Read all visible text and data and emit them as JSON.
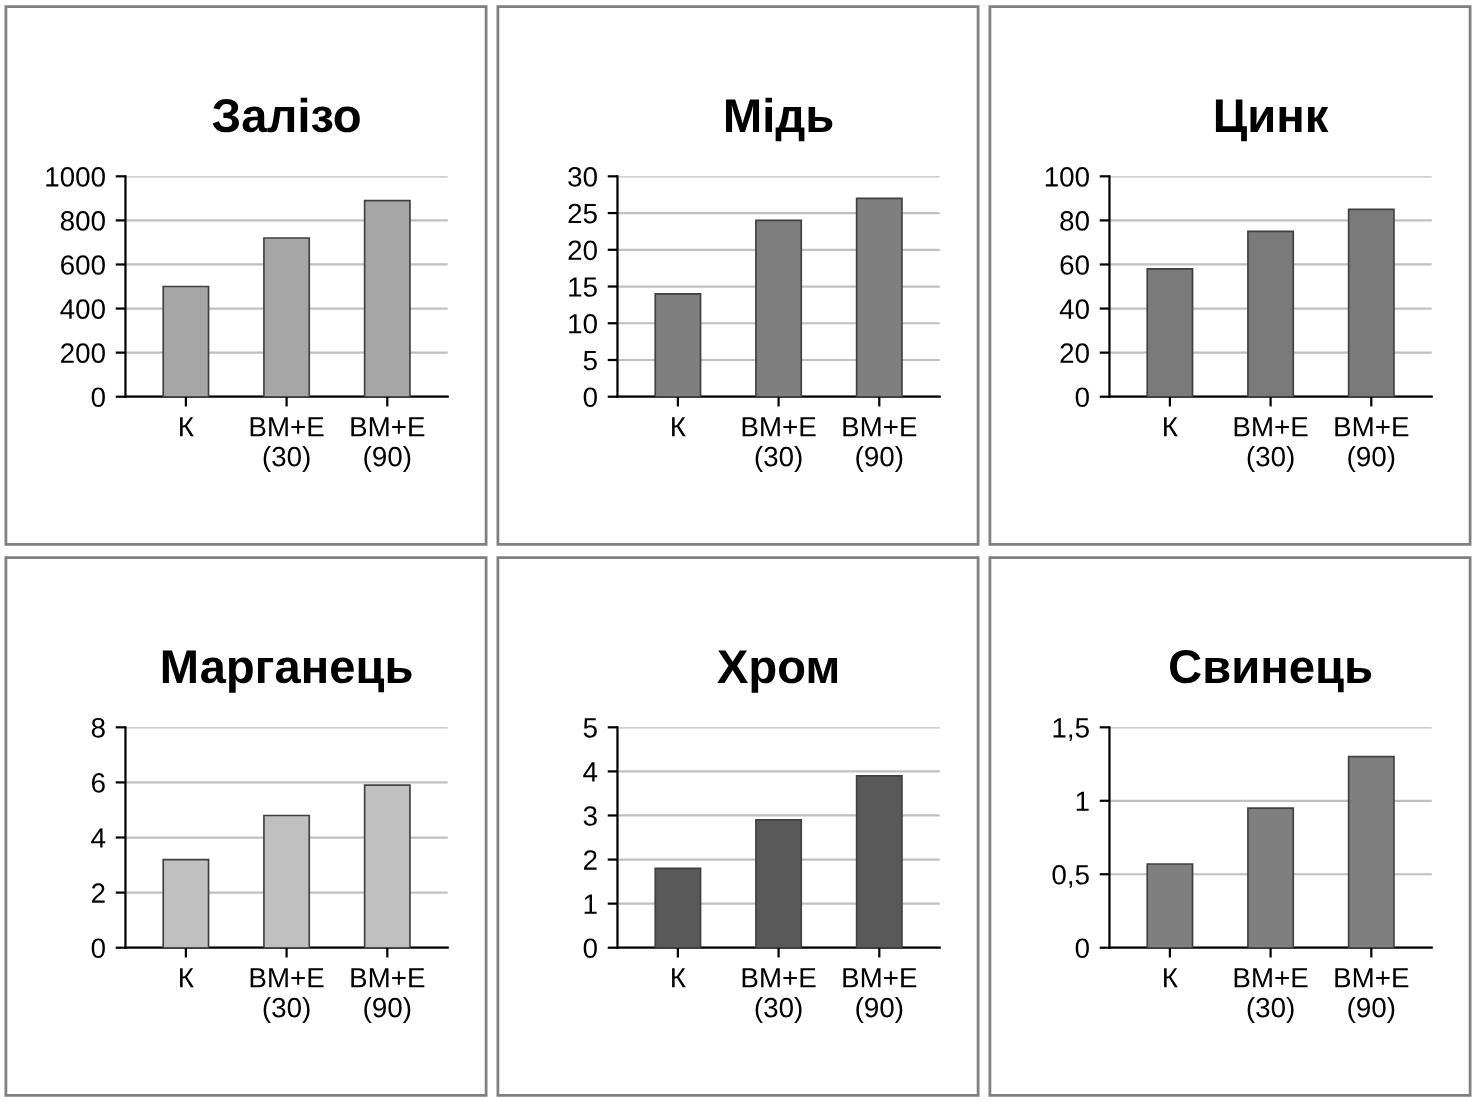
{
  "chart_data": [
    {
      "type": "bar",
      "title": "Залізо",
      "categories": [
        "К",
        "ВМ+Е\n(30)",
        "ВМ+Е\n(90)"
      ],
      "values": [
        500,
        720,
        890
      ],
      "color": "#a6a6a6",
      "ylim": [
        0,
        1000
      ],
      "yticks": [
        0,
        200,
        400,
        600,
        800,
        1000
      ],
      "grid": "y"
    },
    {
      "type": "bar",
      "title": "Мідь",
      "categories": [
        "К",
        "ВМ+Е\n(30)",
        "ВМ+Е\n(90)"
      ],
      "values": [
        14,
        24,
        27
      ],
      "color": "#7f7f7f",
      "ylim": [
        0,
        30
      ],
      "yticks": [
        0,
        5,
        10,
        15,
        20,
        25,
        30
      ],
      "grid": "y"
    },
    {
      "type": "bar",
      "title": "Цинк",
      "categories": [
        "К",
        "ВМ+Е\n(30)",
        "ВМ+Е\n(90)"
      ],
      "values": [
        58,
        75,
        85
      ],
      "color": "#7a7a7a",
      "ylim": [
        0,
        100
      ],
      "yticks": [
        0,
        20,
        40,
        60,
        80,
        100
      ],
      "grid": "y"
    },
    {
      "type": "bar",
      "title": "Марганець",
      "categories": [
        "К",
        "ВМ+Е\n(30)",
        "ВМ+Е\n(90)"
      ],
      "values": [
        3.2,
        4.8,
        5.9
      ],
      "color": "#c0c0c0",
      "ylim": [
        0,
        8
      ],
      "yticks": [
        0,
        2,
        4,
        6,
        8
      ],
      "grid": "y"
    },
    {
      "type": "bar",
      "title": "Хром",
      "categories": [
        "К",
        "ВМ+Е\n(30)",
        "ВМ+Е\n(90)"
      ],
      "values": [
        1.8,
        2.9,
        3.9
      ],
      "color": "#595959",
      "ylim": [
        0,
        5
      ],
      "yticks": [
        0,
        1,
        2,
        3,
        4,
        5
      ],
      "grid": "y"
    },
    {
      "type": "bar",
      "title": "Свинець",
      "categories": [
        "К",
        "ВМ+Е\n(30)",
        "ВМ+Е\n(90)"
      ],
      "values": [
        0.57,
        0.95,
        1.3
      ],
      "color": "#7f7f7f",
      "ylim": [
        0,
        1.5
      ],
      "yticks": [
        0,
        {
          "value": 0.5,
          "label": "0,5"
        },
        1,
        {
          "value": 1.5,
          "label": "1,5"
        }
      ],
      "grid": "y"
    }
  ]
}
